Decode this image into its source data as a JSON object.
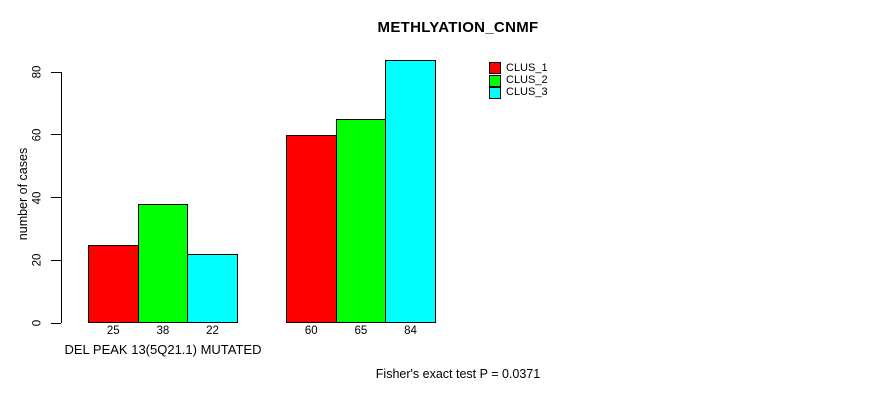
{
  "chart_data": {
    "type": "bar",
    "title": "METHLYATION_CNMF",
    "ylabel": "number of cases",
    "y_ticks": [
      0,
      20,
      40,
      60,
      80
    ],
    "ylim": [
      0,
      84
    ],
    "grid": false,
    "legend_position": "top-right",
    "bar_value_labels_shown_below_bars": true,
    "series": [
      {
        "name": "CLUS_1",
        "color": "#ff0000"
      },
      {
        "name": "CLUS_2",
        "color": "#00ff00"
      },
      {
        "name": "CLUS_3",
        "color": "#00ffff"
      }
    ],
    "groups": [
      {
        "label": "DEL PEAK 13(5Q21.1) MUTATED",
        "values": [
          25,
          38,
          22
        ]
      },
      {
        "label": "",
        "values": [
          60,
          65,
          84
        ]
      }
    ],
    "annotation": "Fisher's exact test P = 0.0371"
  }
}
